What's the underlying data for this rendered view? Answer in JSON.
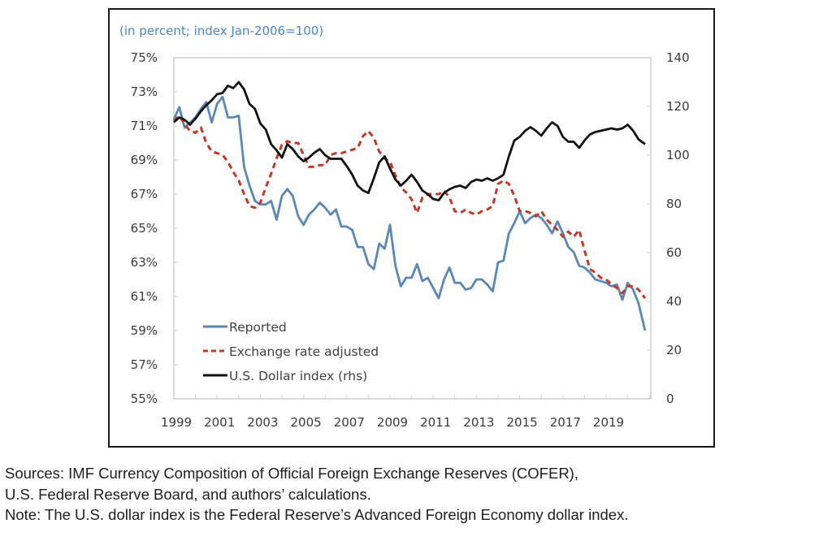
{
  "chart_data": {
    "type": "line",
    "title": "",
    "subtitle": "(in percent; index Jan-2006=100)",
    "xlabel": "",
    "ylabel_left": "",
    "ylabel_right": "",
    "x_range": [
      1999,
      2021.1
    ],
    "ylim_left": [
      55,
      75
    ],
    "ylim_right": [
      0,
      140
    ],
    "y_ticks_left": [
      "75%",
      "73%",
      "71%",
      "69%",
      "67%",
      "65%",
      "63%",
      "61%",
      "59%",
      "57%",
      "55%"
    ],
    "y_tick_values_left": [
      75,
      73,
      71,
      69,
      67,
      65,
      63,
      61,
      59,
      57,
      55
    ],
    "y_ticks_right": [
      "140",
      "120",
      "100",
      "80",
      "60",
      "40",
      "20",
      "0"
    ],
    "y_tick_values_right": [
      140,
      120,
      100,
      80,
      60,
      40,
      20,
      0
    ],
    "x_ticks": [
      "1999",
      "2001",
      "2003",
      "2005",
      "2007",
      "2009",
      "2011",
      "2013",
      "2015",
      "2017",
      "2019"
    ],
    "x_tick_values": [
      1999,
      2001,
      2003,
      2005,
      2007,
      2009,
      2011,
      2013,
      2015,
      2017,
      2019
    ],
    "grid": false,
    "legend_position": "bottom-left",
    "series": [
      {
        "name": "Reported",
        "axis": "left",
        "color": "#5b87b5",
        "style": "solid",
        "points": [
          [
            1999.0,
            71.4
          ],
          [
            1999.25,
            72.1
          ],
          [
            1999.5,
            70.9
          ],
          [
            1999.75,
            71.2
          ],
          [
            2000.0,
            71.5
          ],
          [
            2000.25,
            72.0
          ],
          [
            2000.5,
            72.4
          ],
          [
            2000.75,
            71.2
          ],
          [
            2001.0,
            72.3
          ],
          [
            2001.25,
            72.7
          ],
          [
            2001.5,
            71.5
          ],
          [
            2001.75,
            71.5
          ],
          [
            2002.0,
            71.6
          ],
          [
            2002.25,
            68.6
          ],
          [
            2002.5,
            67.5
          ],
          [
            2002.75,
            66.6
          ],
          [
            2003.0,
            66.4
          ],
          [
            2003.25,
            66.4
          ],
          [
            2003.5,
            66.6
          ],
          [
            2003.75,
            65.5
          ],
          [
            2004.0,
            66.9
          ],
          [
            2004.25,
            67.3
          ],
          [
            2004.5,
            66.9
          ],
          [
            2004.75,
            65.7
          ],
          [
            2005.0,
            65.2
          ],
          [
            2005.25,
            65.8
          ],
          [
            2005.5,
            66.1
          ],
          [
            2005.75,
            66.5
          ],
          [
            2006.0,
            66.2
          ],
          [
            2006.25,
            65.8
          ],
          [
            2006.5,
            66.1
          ],
          [
            2006.75,
            65.1
          ],
          [
            2007.0,
            65.1
          ],
          [
            2007.25,
            64.9
          ],
          [
            2007.5,
            63.9
          ],
          [
            2007.75,
            63.9
          ],
          [
            2008.0,
            62.9
          ],
          [
            2008.25,
            62.6
          ],
          [
            2008.5,
            64.1
          ],
          [
            2008.75,
            63.8
          ],
          [
            2009.0,
            65.2
          ],
          [
            2009.25,
            62.8
          ],
          [
            2009.5,
            61.6
          ],
          [
            2009.75,
            62.1
          ],
          [
            2010.0,
            62.1
          ],
          [
            2010.25,
            62.9
          ],
          [
            2010.5,
            61.9
          ],
          [
            2010.75,
            62.1
          ],
          [
            2011.0,
            61.5
          ],
          [
            2011.25,
            60.9
          ],
          [
            2011.5,
            62.0
          ],
          [
            2011.75,
            62.7
          ],
          [
            2012.0,
            61.8
          ],
          [
            2012.25,
            61.8
          ],
          [
            2012.5,
            61.4
          ],
          [
            2012.75,
            61.5
          ],
          [
            2013.0,
            62.0
          ],
          [
            2013.25,
            62.0
          ],
          [
            2013.5,
            61.7
          ],
          [
            2013.75,
            61.3
          ],
          [
            2014.0,
            63.0
          ],
          [
            2014.25,
            63.1
          ],
          [
            2014.5,
            64.7
          ],
          [
            2014.75,
            65.3
          ],
          [
            2015.0,
            66.0
          ],
          [
            2015.25,
            65.3
          ],
          [
            2015.5,
            65.6
          ],
          [
            2015.75,
            65.8
          ],
          [
            2016.0,
            65.6
          ],
          [
            2016.25,
            65.2
          ],
          [
            2016.5,
            64.7
          ],
          [
            2016.75,
            65.4
          ],
          [
            2017.0,
            64.7
          ],
          [
            2017.25,
            63.9
          ],
          [
            2017.5,
            63.6
          ],
          [
            2017.75,
            62.8
          ],
          [
            2018.0,
            62.7
          ],
          [
            2018.25,
            62.4
          ],
          [
            2018.5,
            62.0
          ],
          [
            2018.75,
            61.9
          ],
          [
            2019.0,
            61.8
          ],
          [
            2019.25,
            61.6
          ],
          [
            2019.5,
            61.7
          ],
          [
            2019.75,
            60.8
          ],
          [
            2020.0,
            61.8
          ],
          [
            2020.25,
            61.4
          ],
          [
            2020.5,
            60.6
          ],
          [
            2020.8,
            59.0
          ]
        ]
      },
      {
        "name": "Exchange rate adjusted",
        "axis": "left",
        "color": "#c0392b",
        "style": "dashed",
        "points": [
          [
            1999.0,
            71.3
          ],
          [
            1999.25,
            71.6
          ],
          [
            1999.5,
            71.1
          ],
          [
            1999.75,
            70.7
          ],
          [
            2000.0,
            70.6
          ],
          [
            2000.25,
            70.9
          ],
          [
            2000.5,
            70.0
          ],
          [
            2000.75,
            69.5
          ],
          [
            2001.0,
            69.4
          ],
          [
            2001.25,
            69.3
          ],
          [
            2001.5,
            68.9
          ],
          [
            2001.75,
            68.3
          ],
          [
            2002.0,
            67.8
          ],
          [
            2002.25,
            67.0
          ],
          [
            2002.5,
            66.3
          ],
          [
            2002.75,
            66.2
          ],
          [
            2003.0,
            66.5
          ],
          [
            2003.25,
            67.4
          ],
          [
            2003.5,
            68.2
          ],
          [
            2003.75,
            69.1
          ],
          [
            2004.0,
            69.9
          ],
          [
            2004.25,
            70.1
          ],
          [
            2004.5,
            70.0
          ],
          [
            2004.75,
            70.0
          ],
          [
            2005.0,
            69.3
          ],
          [
            2005.25,
            68.6
          ],
          [
            2005.5,
            68.6
          ],
          [
            2005.75,
            68.7
          ],
          [
            2006.0,
            68.7
          ],
          [
            2006.25,
            69.3
          ],
          [
            2006.5,
            69.4
          ],
          [
            2006.75,
            69.4
          ],
          [
            2007.0,
            69.5
          ],
          [
            2007.25,
            69.6
          ],
          [
            2007.5,
            69.7
          ],
          [
            2007.75,
            70.4
          ],
          [
            2008.0,
            70.7
          ],
          [
            2008.25,
            70.3
          ],
          [
            2008.5,
            69.5
          ],
          [
            2008.75,
            69.1
          ],
          [
            2009.0,
            68.9
          ],
          [
            2009.25,
            68.1
          ],
          [
            2009.5,
            67.4
          ],
          [
            2009.75,
            67.1
          ],
          [
            2010.0,
            66.7
          ],
          [
            2010.25,
            65.9
          ],
          [
            2010.5,
            66.8
          ],
          [
            2010.75,
            67.0
          ],
          [
            2011.0,
            67.0
          ],
          [
            2011.25,
            67.0
          ],
          [
            2011.5,
            67.2
          ],
          [
            2011.75,
            66.8
          ],
          [
            2012.0,
            66.0
          ],
          [
            2012.25,
            65.9
          ],
          [
            2012.5,
            66.1
          ],
          [
            2012.75,
            65.9
          ],
          [
            2013.0,
            65.8
          ],
          [
            2013.25,
            66.0
          ],
          [
            2013.5,
            66.1
          ],
          [
            2013.75,
            66.3
          ],
          [
            2014.0,
            67.6
          ],
          [
            2014.25,
            67.8
          ],
          [
            2014.5,
            67.6
          ],
          [
            2014.75,
            66.9
          ],
          [
            2015.0,
            66.0
          ],
          [
            2015.25,
            66.0
          ],
          [
            2015.5,
            65.9
          ],
          [
            2015.75,
            65.7
          ],
          [
            2016.0,
            66.0
          ],
          [
            2016.25,
            65.5
          ],
          [
            2016.5,
            65.2
          ],
          [
            2016.75,
            64.9
          ],
          [
            2017.0,
            64.5
          ],
          [
            2017.25,
            64.8
          ],
          [
            2017.5,
            64.5
          ],
          [
            2017.75,
            64.9
          ],
          [
            2018.0,
            63.7
          ],
          [
            2018.25,
            62.6
          ],
          [
            2018.5,
            62.4
          ],
          [
            2018.75,
            62.1
          ],
          [
            2019.0,
            62.0
          ],
          [
            2019.25,
            61.7
          ],
          [
            2019.5,
            61.5
          ],
          [
            2019.75,
            61.2
          ],
          [
            2020.0,
            61.6
          ],
          [
            2020.25,
            61.6
          ],
          [
            2020.5,
            61.4
          ],
          [
            2020.8,
            60.9
          ]
        ]
      },
      {
        "name": "U.S. Dollar index (rhs)",
        "axis": "right",
        "color": "#111111",
        "style": "solid",
        "points": [
          [
            1999.0,
            113.5
          ],
          [
            1999.25,
            115.5
          ],
          [
            1999.5,
            114.5
          ],
          [
            1999.75,
            112.5
          ],
          [
            2000.0,
            115.0
          ],
          [
            2000.25,
            118.0
          ],
          [
            2000.5,
            120.5
          ],
          [
            2000.75,
            122.5
          ],
          [
            2001.0,
            125.0
          ],
          [
            2001.25,
            125.5
          ],
          [
            2001.5,
            128.5
          ],
          [
            2001.75,
            127.5
          ],
          [
            2002.0,
            130.0
          ],
          [
            2002.25,
            127.0
          ],
          [
            2002.5,
            121.0
          ],
          [
            2002.75,
            119.0
          ],
          [
            2003.0,
            113.0
          ],
          [
            2003.25,
            110.5
          ],
          [
            2003.5,
            104.5
          ],
          [
            2003.75,
            102.0
          ],
          [
            2004.0,
            99.0
          ],
          [
            2004.25,
            104.5
          ],
          [
            2004.5,
            102.5
          ],
          [
            2004.75,
            99.5
          ],
          [
            2005.0,
            97.5
          ],
          [
            2005.25,
            99.0
          ],
          [
            2005.5,
            101.0
          ],
          [
            2005.75,
            102.5
          ],
          [
            2006.0,
            100.0
          ],
          [
            2006.25,
            98.5
          ],
          [
            2006.5,
            98.5
          ],
          [
            2006.75,
            98.5
          ],
          [
            2007.0,
            95.5
          ],
          [
            2007.25,
            92.0
          ],
          [
            2007.5,
            87.5
          ],
          [
            2007.75,
            85.5
          ],
          [
            2008.0,
            84.5
          ],
          [
            2008.25,
            90.5
          ],
          [
            2008.5,
            97.0
          ],
          [
            2008.75,
            99.5
          ],
          [
            2009.0,
            94.5
          ],
          [
            2009.25,
            90.0
          ],
          [
            2009.5,
            87.5
          ],
          [
            2009.75,
            89.5
          ],
          [
            2010.0,
            92.0
          ],
          [
            2010.25,
            89.0
          ],
          [
            2010.5,
            85.5
          ],
          [
            2010.75,
            84.0
          ],
          [
            2011.0,
            82.0
          ],
          [
            2011.25,
            81.5
          ],
          [
            2011.5,
            84.5
          ],
          [
            2011.75,
            86.0
          ],
          [
            2012.0,
            87.0
          ],
          [
            2012.25,
            87.5
          ],
          [
            2012.5,
            86.5
          ],
          [
            2012.75,
            89.0
          ],
          [
            2013.0,
            90.0
          ],
          [
            2013.25,
            89.5
          ],
          [
            2013.5,
            90.5
          ],
          [
            2013.75,
            89.5
          ],
          [
            2014.0,
            90.5
          ],
          [
            2014.25,
            92.0
          ],
          [
            2014.5,
            99.5
          ],
          [
            2014.75,
            106.0
          ],
          [
            2015.0,
            107.5
          ],
          [
            2015.25,
            110.0
          ],
          [
            2015.5,
            111.5
          ],
          [
            2015.75,
            110.0
          ],
          [
            2016.0,
            108.0
          ],
          [
            2016.25,
            111.0
          ],
          [
            2016.5,
            113.5
          ],
          [
            2016.75,
            112.0
          ],
          [
            2017.0,
            107.5
          ],
          [
            2017.25,
            105.5
          ],
          [
            2017.5,
            105.5
          ],
          [
            2017.75,
            103.0
          ],
          [
            2018.0,
            106.0
          ],
          [
            2018.25,
            108.5
          ],
          [
            2018.5,
            109.5
          ],
          [
            2018.75,
            110.0
          ],
          [
            2019.0,
            110.5
          ],
          [
            2019.25,
            111.0
          ],
          [
            2019.5,
            110.5
          ],
          [
            2019.75,
            111.0
          ],
          [
            2020.0,
            112.5
          ],
          [
            2020.25,
            110.0
          ],
          [
            2020.5,
            106.5
          ],
          [
            2020.8,
            104.5
          ]
        ]
      }
    ]
  },
  "notes": {
    "line1": "Sources: IMF Currency Composition of Official Foreign Exchange Reserves (COFER),",
    "line2": "U.S. Federal Reserve Board, and authors’ calculations.",
    "line3": "Note: The U.S. dollar index is the Federal Reserve’s Advanced Foreign Economy dollar index."
  }
}
